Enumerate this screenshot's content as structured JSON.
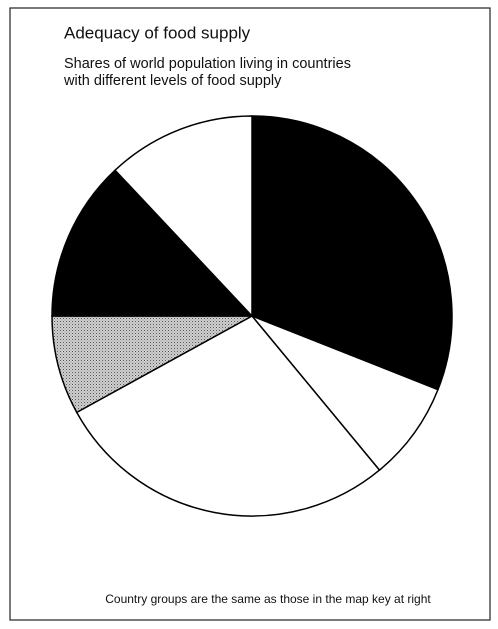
{
  "chart_data": {
    "type": "pie",
    "title": "Adequacy of food supply",
    "subtitle": [
      "Shares of world population living in countries",
      "with different levels of food supply"
    ],
    "footnote": "Country groups are the same as those in the map key at right",
    "categories": [
      null,
      null,
      null,
      null,
      null,
      null
    ],
    "values": [
      31,
      8,
      28,
      8,
      13,
      12
    ],
    "colors": [
      "#000000",
      "#ffffff",
      "#ffffff",
      "#b8b8b8",
      "#000000",
      "#ffffff"
    ]
  }
}
